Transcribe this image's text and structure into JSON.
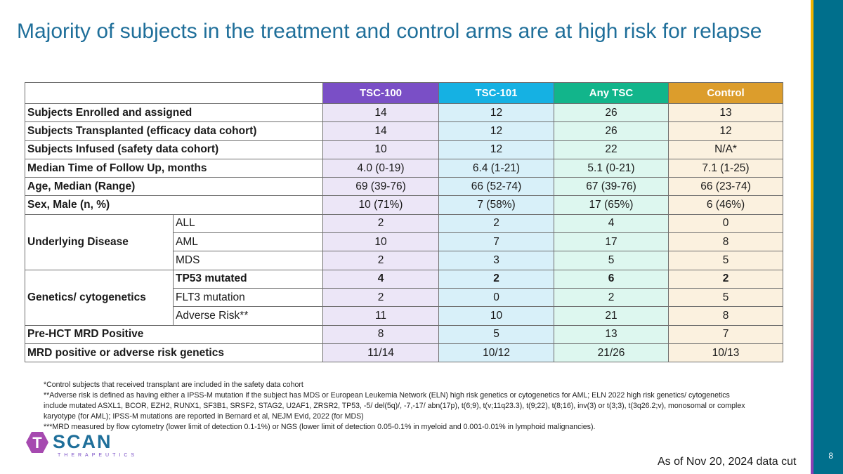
{
  "slide": {
    "title": "Majority of subjects in the treatment and control arms are at high risk for relapse",
    "page_number": "8",
    "as_of": "As of Nov 20, 2024 data cut"
  },
  "table": {
    "headers": [
      "TSC-100",
      "TSC-101",
      "Any TSC",
      "Control"
    ],
    "simple_rows": [
      {
        "label": "Subjects Enrolled and assigned",
        "values": [
          "14",
          "12",
          "26",
          "13"
        ]
      },
      {
        "label": "Subjects Transplanted (efficacy data cohort)",
        "values": [
          "14",
          "12",
          "26",
          "12"
        ]
      },
      {
        "label": "Subjects Infused (safety data cohort)",
        "values": [
          "10",
          "12",
          "22",
          "N/A*"
        ]
      },
      {
        "label": "Median Time of Follow Up, months",
        "values": [
          "4.0 (0-19)",
          "6.4 (1-21)",
          "5.1 (0-21)",
          "7.1 (1-25)"
        ]
      },
      {
        "label": "Age, Median (Range)",
        "values": [
          "69 (39-76)",
          "66 (52-74)",
          "67 (39-76)",
          "66 (23-74)"
        ]
      },
      {
        "label": "Sex, Male (n, %)",
        "values": [
          "10 (71%)",
          "7 (58%)",
          "17 (65%)",
          "6 (46%)"
        ]
      }
    ],
    "underlying": {
      "label": "Underlying Disease",
      "rows": [
        {
          "label": "ALL",
          "values": [
            "2",
            "2",
            "4",
            "0"
          ]
        },
        {
          "label": "AML",
          "values": [
            "10",
            "7",
            "17",
            "8"
          ]
        },
        {
          "label": "MDS",
          "values": [
            "2",
            "3",
            "5",
            "5"
          ]
        }
      ]
    },
    "genetics": {
      "label": "Genetics/ cytogenetics",
      "rows": [
        {
          "label": "TP53 mutated",
          "values": [
            "4",
            "2",
            "6",
            "2"
          ]
        },
        {
          "label": "FLT3 mutation",
          "values": [
            "2",
            "0",
            "2",
            "5"
          ]
        },
        {
          "label": "Adverse Risk**",
          "values": [
            "11",
            "10",
            "21",
            "8"
          ]
        }
      ]
    },
    "final_rows": [
      {
        "label": "Pre-HCT MRD Positive",
        "values": [
          "8",
          "5",
          "13",
          "7"
        ]
      },
      {
        "label": "MRD positive or adverse risk genetics",
        "values": [
          "11/14",
          "10/12",
          "21/26",
          "10/13"
        ]
      }
    ]
  },
  "footnotes": [
    "*Control subjects that received transplant are included in the safety data cohort",
    "**Adverse risk is defined as having either a IPSS-M mutation if the subject has MDS or European Leukemia Network (ELN) high risk genetics or cytogenetics for AML; ELN 2022 high risk genetics/ cytogenetics include mutated ASXL1, BCOR, EZH2, RUNX1, SF3B1, SRSF2, STAG2, U2AF1, ZRSR2, TP53, -5/ del(5q)/, -7,-17/ abn(17p), t(6;9), t(v;11q23.3), t(9;22), t(8;16), inv(3) or t(3;3), t(3q26.2;v), monosomal or complex karyotype (for AML); IPSS-M mutations are reported in Bernard et al, NEJM Evid, 2022 (for MDS)",
    "***MRD measured by flow cytometry (lower limit of detection 0.1-1%) or NGS (lower limit of detection 0.05-0.1% in myeloid and 0.001-0.01% in lymphoid malignancies)."
  ],
  "logo": {
    "word": "SCAN",
    "letter": "T",
    "tagline": "THERAPEUTICS"
  },
  "colors": {
    "title": "#1f6f9a",
    "tsc100": "#7a4fc6",
    "tsc101": "#15b1e3",
    "any_tsc": "#12b58b",
    "control": "#dc9d2c",
    "sidebar": "#006f8c"
  }
}
